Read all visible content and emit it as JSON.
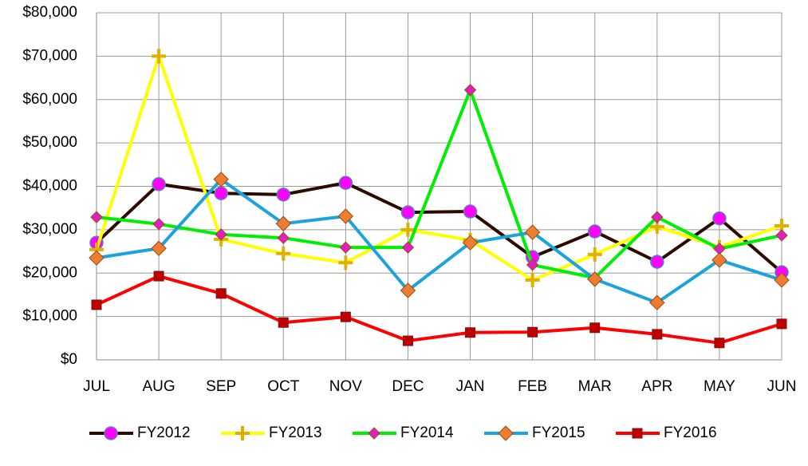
{
  "chart_data": {
    "type": "line",
    "categories": [
      "JUL",
      "AUG",
      "SEP",
      "OCT",
      "NOV",
      "DEC",
      "JAN",
      "FEB",
      "MAR",
      "APR",
      "MAY",
      "JUN"
    ],
    "ylim": [
      0,
      80000
    ],
    "yticks": [
      {
        "value": 0,
        "label": "$0"
      },
      {
        "value": 10000,
        "label": "$10,000"
      },
      {
        "value": 20000,
        "label": "$20,000"
      },
      {
        "value": 30000,
        "label": "$30,000"
      },
      {
        "value": 40000,
        "label": "$40,000"
      },
      {
        "value": 50000,
        "label": "$50,000"
      },
      {
        "value": 60000,
        "label": "$60,000"
      },
      {
        "value": 70000,
        "label": "$70,000"
      },
      {
        "value": 80000,
        "label": "$80,000"
      }
    ],
    "grid": true,
    "legend": "bottom",
    "series": [
      {
        "name": "FY2012",
        "color": "#2d0a00",
        "marker": "circle",
        "marker_color": "#ff00ff",
        "values": [
          27000,
          40500,
          38400,
          38100,
          40800,
          34000,
          34200,
          23700,
          29600,
          22600,
          32600,
          20200
        ]
      },
      {
        "name": "FY2013",
        "color": "#ffff00",
        "marker": "plus",
        "marker_color": "#ffff00",
        "values": [
          25400,
          70000,
          27800,
          24500,
          22400,
          30000,
          27600,
          18400,
          24300,
          30700,
          26000,
          30900
        ]
      },
      {
        "name": "FY2014",
        "color": "#00ee00",
        "marker": "diamond",
        "marker_color": "#e020c0",
        "values": [
          32900,
          31300,
          28900,
          28100,
          25900,
          25900,
          62200,
          21900,
          18900,
          32900,
          25600,
          28700
        ]
      },
      {
        "name": "FY2015",
        "color": "#1ca3dc",
        "marker": "diamond",
        "marker_color": "#ed7d31",
        "values": [
          23500,
          25700,
          41600,
          31400,
          33100,
          16000,
          27000,
          29400,
          18600,
          13200,
          23000,
          18400
        ]
      },
      {
        "name": "FY2016",
        "color": "#ff0000",
        "marker": "square",
        "marker_color": "#c00000",
        "values": [
          12700,
          19300,
          15300,
          8600,
          9900,
          4400,
          6300,
          6400,
          7400,
          5900,
          3900,
          8300
        ]
      }
    ]
  }
}
